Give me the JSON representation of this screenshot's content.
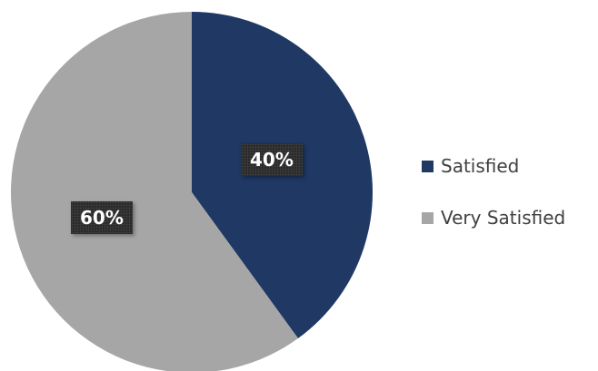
{
  "chart_data": {
    "type": "pie",
    "title": "",
    "slices": [
      {
        "label": "Satisfied",
        "value": 40,
        "display": "40%",
        "color": "#1f3864"
      },
      {
        "label": "Very Satisfied",
        "value": 60,
        "display": "60%",
        "color": "#a6a6a6"
      }
    ],
    "start_angle": "12 o'clock",
    "direction": "clockwise",
    "legend_position": "right",
    "data_label_style": "dark box, white bold text"
  }
}
